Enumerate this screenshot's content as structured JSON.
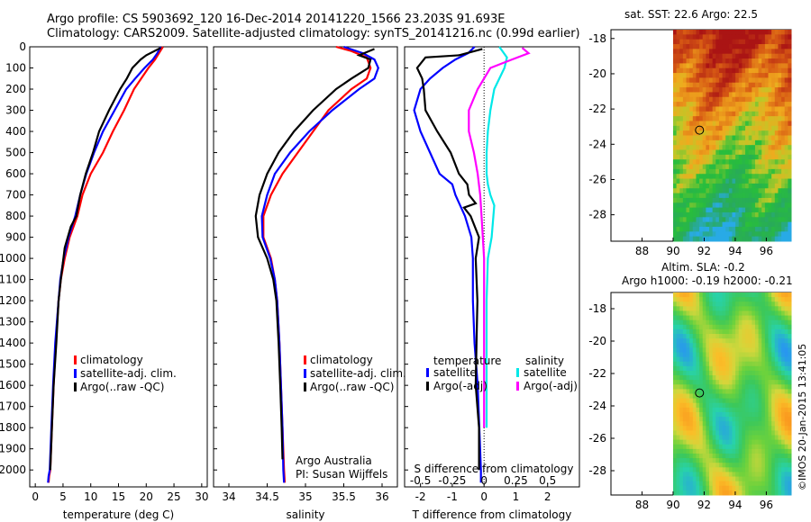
{
  "header": {
    "line1": "Argo profile: CS 5903692_120 16-Dec-2014 20141220_1566 23.203S 91.693E",
    "line2": "Climatology: CARS2009. Satellite-adjusted climatology: synTS_20141216.nc (0.99d earlier)"
  },
  "stamp": "©IMOS 20-Jan-2015 13:41:05",
  "colors": {
    "clim": "#ff0000",
    "sat": "#0000ff",
    "argo": "#000000",
    "sat_s": "#00e8e8",
    "argo_s": "#ff00ff"
  },
  "chart_data": [
    {
      "id": "temperature",
      "type": "line",
      "xlabel": "temperature (deg C)",
      "ylabel": "",
      "xlim": [
        -1,
        31
      ],
      "ylim": [
        2080,
        0
      ],
      "xticks": [
        0,
        5,
        10,
        15,
        20,
        25,
        30
      ],
      "yticks": [
        0,
        100,
        200,
        300,
        400,
        500,
        600,
        700,
        800,
        900,
        1000,
        1100,
        1200,
        1300,
        1400,
        1500,
        1600,
        1700,
        1800,
        1900,
        2000
      ],
      "legend": [
        "climatology",
        "satellite-adj. clim.",
        "Argo(..raw -QC)"
      ],
      "series": [
        {
          "name": "climatology",
          "color": "clim",
          "x": [
            23.0,
            22.3,
            21.6,
            20.4,
            19.1,
            17.8,
            16.0,
            14.0,
            12.2,
            10.0,
            8.5,
            7.6,
            6.2,
            5.3,
            4.6,
            4.2,
            3.7,
            3.3,
            3.0,
            2.7,
            2.5,
            2.4
          ],
          "y": [
            0,
            30,
            60,
            100,
            150,
            200,
            300,
            400,
            500,
            600,
            700,
            800,
            900,
            1000,
            1100,
            1200,
            1400,
            1600,
            1800,
            2000,
            2030,
            2060
          ]
        },
        {
          "name": "satellite-adj. clim.",
          "color": "sat",
          "x": [
            22.6,
            22.0,
            21.2,
            19.7,
            18.0,
            16.4,
            14.3,
            12.2,
            10.6,
            9.2,
            8.1,
            7.2,
            6.0,
            5.1,
            4.5,
            4.2,
            3.6,
            3.2,
            2.9,
            2.6,
            2.4,
            2.3
          ],
          "y": [
            0,
            30,
            60,
            100,
            150,
            200,
            300,
            400,
            500,
            600,
            700,
            800,
            900,
            1000,
            1100,
            1200,
            1400,
            1600,
            1800,
            2000,
            2030,
            2060
          ]
        },
        {
          "name": "Argo(..raw -QC)",
          "color": "argo",
          "x": [
            22.6,
            20.0,
            19.0,
            17.5,
            16.5,
            15.3,
            13.3,
            11.5,
            10.4,
            9.1,
            8.1,
            7.4,
            6.4,
            5.3,
            4.6,
            4.2,
            3.8,
            3.3,
            3.0,
            2.7
          ],
          "y": [
            5,
            40,
            60,
            100,
            150,
            200,
            300,
            400,
            500,
            600,
            700,
            800,
            850,
            950,
            1100,
            1200,
            1400,
            1600,
            1800,
            2000
          ]
        }
      ]
    },
    {
      "id": "salinity",
      "type": "line",
      "xlabel": "salinity",
      "xlim": [
        33.8,
        36.2
      ],
      "ylim": [
        2080,
        0
      ],
      "xticks": [
        34,
        34.5,
        35,
        35.5,
        36
      ],
      "legend": [
        "climatology",
        "satellite-adj. clim.",
        "Argo(..raw -QC)"
      ],
      "annotation": [
        "Argo Australia",
        "PI: Susan Wijffels"
      ],
      "series": [
        {
          "name": "climatology",
          "color": "clim",
          "x": [
            35.4,
            35.6,
            35.8,
            35.85,
            35.8,
            35.6,
            35.3,
            35.1,
            34.9,
            34.7,
            34.55,
            34.45,
            34.45,
            34.55,
            34.6,
            34.63,
            34.66,
            34.68,
            34.7,
            34.72,
            34.73
          ],
          "y": [
            0,
            20,
            50,
            100,
            150,
            200,
            300,
            400,
            500,
            600,
            700,
            800,
            900,
            1000,
            1100,
            1200,
            1400,
            1600,
            1800,
            2000,
            2060
          ]
        },
        {
          "name": "satellite-adj. clim.",
          "color": "sat",
          "x": [
            35.5,
            35.75,
            35.9,
            35.95,
            35.9,
            35.7,
            35.35,
            35.05,
            34.8,
            34.6,
            34.5,
            34.43,
            34.44,
            34.54,
            34.6,
            34.63,
            34.66,
            34.68,
            34.7,
            34.71,
            34.72
          ],
          "y": [
            0,
            30,
            60,
            100,
            150,
            200,
            300,
            400,
            500,
            600,
            700,
            800,
            900,
            1000,
            1100,
            1200,
            1400,
            1600,
            1800,
            2000,
            2060
          ]
        },
        {
          "name": "Argo(..raw -QC)",
          "color": "argo",
          "x": [
            35.9,
            35.7,
            35.85,
            35.82,
            35.6,
            35.4,
            35.1,
            34.85,
            34.65,
            34.5,
            34.4,
            34.35,
            34.38,
            34.5,
            34.58,
            34.62,
            34.65,
            34.67,
            34.69,
            34.7
          ],
          "y": [
            10,
            40,
            60,
            100,
            150,
            200,
            300,
            400,
            500,
            600,
            700,
            800,
            900,
            1000,
            1100,
            1200,
            1400,
            1600,
            1800,
            1950
          ]
        }
      ]
    },
    {
      "id": "difference",
      "type": "line",
      "xlabel": "T difference from climatology",
      "top_label": "S difference from climatology",
      "xlim": [
        -2.5,
        3.0
      ],
      "ylim": [
        2080,
        0
      ],
      "xticks": [
        -2,
        -1,
        0,
        1,
        2
      ],
      "top_ticks": [
        "-0.5",
        "-0.25",
        "0",
        "0.25",
        "0.5"
      ],
      "legend_left_title": "temperature",
      "legend_right_title": "salinity",
      "legend": [
        "satellite",
        "Argo(-adj)",
        "satellite",
        "Argo(-adj)"
      ],
      "series": [
        {
          "name": "T satellite",
          "color": "sat",
          "x": [
            -0.3,
            -0.5,
            -0.9,
            -1.3,
            -1.7,
            -2.0,
            -2.2,
            -2.0,
            -1.7,
            -1.4,
            -1.0,
            -0.9,
            -0.6,
            -0.4,
            -0.35,
            -0.35,
            -0.3,
            -0.2,
            -0.15,
            -0.1,
            -0.1
          ],
          "y": [
            0,
            30,
            60,
            100,
            150,
            200,
            300,
            400,
            500,
            600,
            650,
            700,
            800,
            900,
            1000,
            1200,
            1400,
            1600,
            1800,
            2000,
            2060
          ]
        },
        {
          "name": "T Argo(-adj)",
          "color": "argo",
          "x": [
            -0.1,
            -1.5,
            -3.5,
            -4.0,
            -3.7,
            -3.6,
            -3.5,
            -2.8,
            -2.0,
            -1.5,
            -1.0,
            -0.9,
            -0.5,
            -1.2,
            -0.8,
            -0.3,
            -0.5,
            -0.4,
            -0.45,
            -0.5,
            -0.3,
            -0.3,
            -0.3
          ],
          "y": [
            10,
            40,
            50,
            100,
            150,
            200,
            300,
            400,
            500,
            600,
            650,
            700,
            740,
            760,
            800,
            900,
            1000,
            1200,
            1400,
            1600,
            1800,
            1950,
            2000
          ]
        },
        {
          "name": "S satellite",
          "color": "sat_s",
          "x": [
            0.12,
            0.18,
            0.16,
            0.08,
            0.05,
            0.03,
            0.02,
            0.02,
            0.03,
            0.05,
            0.08,
            0.06,
            0.03,
            0.02,
            0.02,
            0.02,
            0.02
          ],
          "y": [
            0,
            50,
            100,
            200,
            300,
            400,
            500,
            600,
            650,
            700,
            750,
            900,
            1000,
            1200,
            1400,
            1600,
            1800
          ]
        },
        {
          "name": "S Argo(-adj)",
          "color": "argo_s",
          "x": [
            0.3,
            0.35,
            0.22,
            0.05,
            -0.05,
            -0.12,
            -0.12,
            -0.08,
            -0.05,
            -0.03,
            -0.02,
            -0.01,
            0.0,
            0.0,
            0.0,
            0.0,
            0.0
          ],
          "y": [
            5,
            30,
            60,
            100,
            200,
            300,
            400,
            500,
            600,
            700,
            800,
            900,
            1000,
            1200,
            1400,
            1600,
            1800
          ]
        }
      ]
    },
    {
      "id": "sst_map",
      "type": "heatmap",
      "title": "sat. SST: 22.6  Argo: 22.5",
      "xticks": [
        88,
        90,
        92,
        94,
        96
      ],
      "yticks": [
        -18,
        -20,
        -22,
        -24,
        -26,
        -28
      ],
      "xlim": [
        86.0,
        97.6
      ],
      "ylim": [
        -29.5,
        -17.5
      ],
      "marker": {
        "lon": 91.7,
        "lat": -23.2
      }
    },
    {
      "id": "sla_map",
      "type": "heatmap",
      "title_lines": [
        "Altim. SLA: -0.2",
        "Argo h1000: -0.19 h2000: -0.21"
      ],
      "xticks": [
        88,
        90,
        92,
        94,
        96
      ],
      "yticks": [
        -18,
        -20,
        -22,
        -24,
        -26,
        -28
      ],
      "xlim": [
        86.0,
        97.6
      ],
      "ylim": [
        -29.5,
        -17.0
      ],
      "marker": {
        "lon": 91.7,
        "lat": -23.2
      }
    }
  ]
}
